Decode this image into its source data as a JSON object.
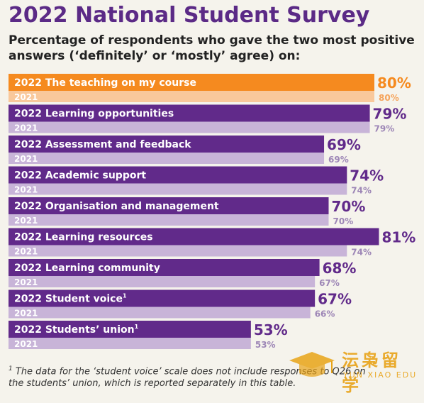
{
  "title": "2022 National Student Survey",
  "subtitle": "Percentage of respondents who gave the two most positive answers (‘definitely’ or ‘mostly’ agree) on:",
  "footnote": {
    "marker": "1",
    "text": "The data for the ‘student voice’ scale does not include responses to Q26 on the students’ union, which is reported separately in this table."
  },
  "watermark": {
    "cn": "沄枭留学",
    "en": "YUN XIAO EDU"
  },
  "colors": {
    "purple": "#612a8a",
    "purple_light": "#c8b4d8",
    "orange": "#f58a1f",
    "orange_light": "#f9c89b",
    "label_2021": "#9d86b6",
    "label_2021_orange": "#f5a35b"
  },
  "chart_data": {
    "type": "bar",
    "orientation": "horizontal",
    "categories": [
      "The teaching on my course",
      "Learning opportunities",
      "Assessment and feedback",
      "Academic support",
      "Organisation and management",
      "Learning resources",
      "Learning community",
      "Student voice",
      "Students’ union"
    ],
    "superscript": [
      "",
      "",
      "",
      "",
      "",
      "",
      "",
      "1",
      "1"
    ],
    "highlight": [
      true,
      false,
      false,
      false,
      false,
      false,
      false,
      false,
      false
    ],
    "series": [
      {
        "name": "2022",
        "values": [
          80,
          79,
          69,
          74,
          70,
          81,
          68,
          67,
          53
        ]
      },
      {
        "name": "2021",
        "values": [
          80,
          79,
          69,
          74,
          70,
          74,
          67,
          66,
          53
        ]
      }
    ],
    "value_suffix": "%"
  }
}
